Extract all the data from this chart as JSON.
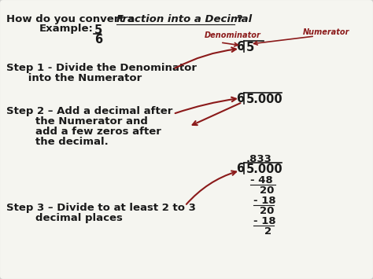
{
  "bg_color": "#f5f5f0",
  "border_color": "#cccccc",
  "text_color": "#1a1a1a",
  "red_color": "#8B1A1A",
  "title_normal": "How do you convert a ",
  "title_italic_underline": "Fraction into a Decimal",
  "title_end": "?",
  "example_label": "Example:",
  "numerator": "5",
  "denominator": "6",
  "step1_line1": "Step 1 - Divide the Denominator",
  "step1_line2": "      into the Numerator",
  "step2_line1": "Step 2 – Add a decimal after",
  "step2_line2": "        the Numerator and",
  "step2_line3": "        add a few zeros after",
  "step2_line4": "        the decimal.",
  "step3_line1": "Step 3 – Divide to at least 2 to 3",
  "step3_line2": "        decimal places",
  "denom_label": "Denominator",
  "numer_label": "Numerator",
  "div1_divisor": "6",
  "div1_dividend": "5",
  "div2_divisor": "6",
  "div2_dividend": "5.000",
  "div3_quotient": ".833",
  "div3_divisor": "6",
  "div3_dividend": "5.000",
  "div3_sub1": "- 48",
  "div3_r1": "20",
  "div3_sub2": "- 18",
  "div3_r2": "20",
  "div3_sub3": "- 18",
  "div3_r3": "2"
}
